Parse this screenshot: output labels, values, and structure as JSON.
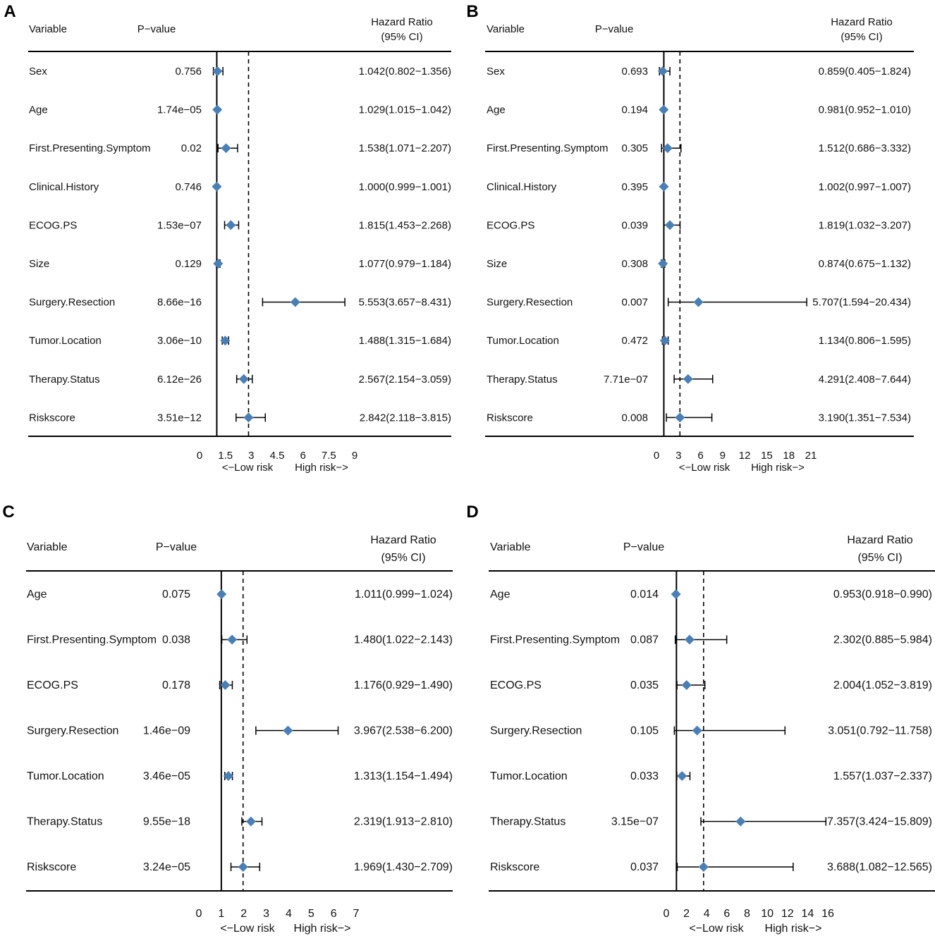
{
  "header": {
    "variable": "Variable",
    "pvalue": "P−value",
    "hr1": "Hazard Ratio",
    "hr2": "(95% CI)",
    "low_risk": "<−Low risk",
    "high_risk": "High risk−>"
  },
  "colors": {
    "marker": "#4a7fb5",
    "line": "#000000"
  },
  "chart_data": [
    {
      "type": "forest",
      "label": "A",
      "xlim": [
        0,
        9
      ],
      "ticks": [
        0,
        1.5,
        3,
        4.5,
        6,
        7.5,
        9
      ],
      "tick_labels": [
        "0",
        "1.5",
        "3",
        "4.5",
        "6",
        "7.5",
        "9"
      ],
      "reference": 1,
      "dashed": 2.842,
      "rows": [
        {
          "variable": "Sex",
          "pvalue": "0.756",
          "hr": 1.042,
          "lo": 0.802,
          "hi": 1.356,
          "text": "1.042(0.802−1.356)"
        },
        {
          "variable": "Age",
          "pvalue": "1.74e−05",
          "hr": 1.029,
          "lo": 1.015,
          "hi": 1.042,
          "text": "1.029(1.015−1.042)"
        },
        {
          "variable": "First.Presenting.Symptom",
          "pvalue": "0.02",
          "hr": 1.538,
          "lo": 1.071,
          "hi": 2.207,
          "text": "1.538(1.071−2.207)"
        },
        {
          "variable": "Clinical.History",
          "pvalue": "0.746",
          "hr": 1.0,
          "lo": 0.999,
          "hi": 1.001,
          "text": "1.000(0.999−1.001)"
        },
        {
          "variable": "ECOG.PS",
          "pvalue": "1.53e−07",
          "hr": 1.815,
          "lo": 1.453,
          "hi": 2.268,
          "text": "1.815(1.453−2.268)"
        },
        {
          "variable": "Size",
          "pvalue": "0.129",
          "hr": 1.077,
          "lo": 0.979,
          "hi": 1.184,
          "text": "1.077(0.979−1.184)"
        },
        {
          "variable": "Surgery.Resection",
          "pvalue": "8.66e−16",
          "hr": 5.553,
          "lo": 3.657,
          "hi": 8.431,
          "text": "5.553(3.657−8.431)"
        },
        {
          "variable": "Tumor.Location",
          "pvalue": "3.06e−10",
          "hr": 1.488,
          "lo": 1.315,
          "hi": 1.684,
          "text": "1.488(1.315−1.684)"
        },
        {
          "variable": "Therapy.Status",
          "pvalue": "6.12e−26",
          "hr": 2.567,
          "lo": 2.154,
          "hi": 3.059,
          "text": "2.567(2.154−3.059)"
        },
        {
          "variable": "Riskscore",
          "pvalue": "3.51e−12",
          "hr": 2.842,
          "lo": 2.118,
          "hi": 3.815,
          "text": "2.842(2.118−3.815)"
        }
      ]
    },
    {
      "type": "forest",
      "label": "B",
      "xlim": [
        0,
        21
      ],
      "ticks": [
        0,
        3,
        6,
        9,
        12,
        15,
        18,
        21
      ],
      "tick_labels": [
        "0",
        "3",
        "6",
        "9",
        "12",
        "15",
        "18",
        "21"
      ],
      "reference": 1,
      "dashed": 3.19,
      "rows": [
        {
          "variable": "Sex",
          "pvalue": "0.693",
          "hr": 0.859,
          "lo": 0.405,
          "hi": 1.824,
          "text": "0.859(0.405−1.824)"
        },
        {
          "variable": "Age",
          "pvalue": "0.194",
          "hr": 0.981,
          "lo": 0.952,
          "hi": 1.01,
          "text": "0.981(0.952−1.010)"
        },
        {
          "variable": "First.Presenting.Symptom",
          "pvalue": "0.305",
          "hr": 1.512,
          "lo": 0.686,
          "hi": 3.332,
          "text": "1.512(0.686−3.332)"
        },
        {
          "variable": "Clinical.History",
          "pvalue": "0.395",
          "hr": 1.002,
          "lo": 0.997,
          "hi": 1.007,
          "text": "1.002(0.997−1.007)"
        },
        {
          "variable": "ECOG.PS",
          "pvalue": "0.039",
          "hr": 1.819,
          "lo": 1.032,
          "hi": 3.207,
          "text": "1.819(1.032−3.207)"
        },
        {
          "variable": "Size",
          "pvalue": "0.308",
          "hr": 0.874,
          "lo": 0.675,
          "hi": 1.132,
          "text": "0.874(0.675−1.132)"
        },
        {
          "variable": "Surgery.Resection",
          "pvalue": "0.007",
          "hr": 5.707,
          "lo": 1.594,
          "hi": 20.434,
          "text": "5.707(1.594−20.434)"
        },
        {
          "variable": "Tumor.Location",
          "pvalue": "0.472",
          "hr": 1.134,
          "lo": 0.806,
          "hi": 1.595,
          "text": "1.134(0.806−1.595)"
        },
        {
          "variable": "Therapy.Status",
          "pvalue": "7.71e−07",
          "hr": 4.291,
          "lo": 2.408,
          "hi": 7.644,
          "text": "4.291(2.408−7.644)"
        },
        {
          "variable": "Riskscore",
          "pvalue": "0.008",
          "hr": 3.19,
          "lo": 1.351,
          "hi": 7.534,
          "text": "3.190(1.351−7.534)"
        }
      ]
    },
    {
      "type": "forest",
      "label": "C",
      "xlim": [
        0,
        7
      ],
      "ticks": [
        0,
        1,
        2,
        3,
        4,
        5,
        6,
        7
      ],
      "tick_labels": [
        "0",
        "1",
        "2",
        "3",
        "4",
        "5",
        "6",
        "7"
      ],
      "reference": 1,
      "dashed": 1.969,
      "rows": [
        {
          "variable": "Age",
          "pvalue": "0.075",
          "hr": 1.011,
          "lo": 0.999,
          "hi": 1.024,
          "text": "1.011(0.999−1.024)"
        },
        {
          "variable": "First.Presenting.Symptom",
          "pvalue": "0.038",
          "hr": 1.48,
          "lo": 1.022,
          "hi": 2.143,
          "text": "1.480(1.022−2.143)"
        },
        {
          "variable": "ECOG.PS",
          "pvalue": "0.178",
          "hr": 1.176,
          "lo": 0.929,
          "hi": 1.49,
          "text": "1.176(0.929−1.490)"
        },
        {
          "variable": "Surgery.Resection",
          "pvalue": "1.46e−09",
          "hr": 3.967,
          "lo": 2.538,
          "hi": 6.2,
          "text": "3.967(2.538−6.200)"
        },
        {
          "variable": "Tumor.Location",
          "pvalue": "3.46e−05",
          "hr": 1.313,
          "lo": 1.154,
          "hi": 1.494,
          "text": "1.313(1.154−1.494)"
        },
        {
          "variable": "Therapy.Status",
          "pvalue": "9.55e−18",
          "hr": 2.319,
          "lo": 1.913,
          "hi": 2.81,
          "text": "2.319(1.913−2.810)"
        },
        {
          "variable": "Riskscore",
          "pvalue": "3.24e−05",
          "hr": 1.969,
          "lo": 1.43,
          "hi": 2.709,
          "text": "1.969(1.430−2.709)"
        }
      ]
    },
    {
      "type": "forest",
      "label": "D",
      "xlim": [
        0,
        16
      ],
      "ticks": [
        0,
        2,
        4,
        6,
        8,
        10,
        12,
        14,
        16
      ],
      "tick_labels": [
        "0",
        "2",
        "4",
        "6",
        "8",
        "10",
        "12",
        "14",
        "16"
      ],
      "reference": 1,
      "dashed": 3.688,
      "rows": [
        {
          "variable": "Age",
          "pvalue": "0.014",
          "hr": 0.953,
          "lo": 0.918,
          "hi": 0.99,
          "text": "0.953(0.918−0.990)"
        },
        {
          "variable": "First.Presenting.Symptom",
          "pvalue": "0.087",
          "hr": 2.302,
          "lo": 0.885,
          "hi": 5.984,
          "text": "2.302(0.885−5.984)"
        },
        {
          "variable": "ECOG.PS",
          "pvalue": "0.035",
          "hr": 2.004,
          "lo": 1.052,
          "hi": 3.819,
          "text": "2.004(1.052−3.819)"
        },
        {
          "variable": "Surgery.Resection",
          "pvalue": "0.105",
          "hr": 3.051,
          "lo": 0.792,
          "hi": 11.758,
          "text": "3.051(0.792−11.758)"
        },
        {
          "variable": "Tumor.Location",
          "pvalue": "0.033",
          "hr": 1.557,
          "lo": 1.037,
          "hi": 2.337,
          "text": "1.557(1.037−2.337)"
        },
        {
          "variable": "Therapy.Status",
          "pvalue": "3.15e−07",
          "hr": 7.357,
          "lo": 3.424,
          "hi": 15.809,
          "text": "7.357(3.424−15.809)"
        },
        {
          "variable": "Riskscore",
          "pvalue": "0.037",
          "hr": 3.688,
          "lo": 1.082,
          "hi": 12.565,
          "text": "3.688(1.082−12.565)"
        }
      ]
    }
  ]
}
